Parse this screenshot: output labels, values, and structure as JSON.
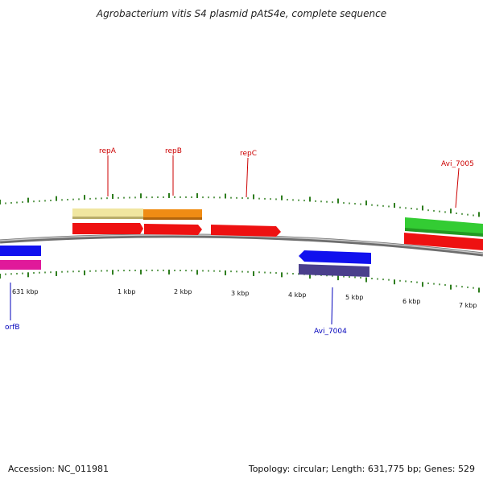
{
  "title": "Agrobacterium vitis S4 plasmid pAtS4e, complete sequence",
  "footer": {
    "accession": "Accession: NC_011981",
    "summary": "Topology: circular; Length: 631,775 bp; Genes: 529"
  },
  "colors": {
    "backbone": "#808080",
    "tick": "#2e7d1e",
    "label_plus": "#cc0000",
    "label_minus": "#0000bb"
  },
  "gene_labels": [
    {
      "text": "repA",
      "strand": "plus"
    },
    {
      "text": "repB",
      "strand": "plus"
    },
    {
      "text": "repC",
      "strand": "plus"
    },
    {
      "text": "Avi_7005",
      "strand": "plus"
    },
    {
      "text": "Avi_7004",
      "strand": "minus"
    },
    {
      "text": "orfB",
      "strand": "minus"
    }
  ],
  "scale_labels": [
    "631 kbp",
    "1 kbp",
    "2 kbp",
    "3 kbp",
    "4 kbp",
    "5 kbp",
    "6 kbp",
    "7 kbp"
  ],
  "features": [
    {
      "name": "repA-cds",
      "color": "#f0e6a0",
      "track": "outer",
      "strand": "plus"
    },
    {
      "name": "repB-cds",
      "color": "#f08c14",
      "track": "outer",
      "strand": "plus"
    },
    {
      "name": "repA-gene",
      "color": "#ee1111",
      "track": "inner",
      "strand": "plus"
    },
    {
      "name": "repB-gene",
      "color": "#ee1111",
      "track": "inner",
      "strand": "plus"
    },
    {
      "name": "repC-gene",
      "color": "#ee1111",
      "track": "inner",
      "strand": "plus"
    },
    {
      "name": "Avi_7005-cds",
      "color": "#33cc33",
      "track": "outer",
      "strand": "plus"
    },
    {
      "name": "Avi_7005-gene",
      "color": "#ee1111",
      "track": "inner",
      "strand": "plus"
    },
    {
      "name": "Avi_7004-gene",
      "color": "#1111ee",
      "track": "inner",
      "strand": "minus"
    },
    {
      "name": "Avi_7004-cds",
      "color": "#4a3f8c",
      "track": "outer",
      "strand": "minus"
    },
    {
      "name": "orfB-gene",
      "color": "#1111ee",
      "track": "inner",
      "strand": "minus"
    },
    {
      "name": "orfB-cds",
      "color": "#e0199a",
      "track": "outer",
      "strand": "minus"
    }
  ]
}
